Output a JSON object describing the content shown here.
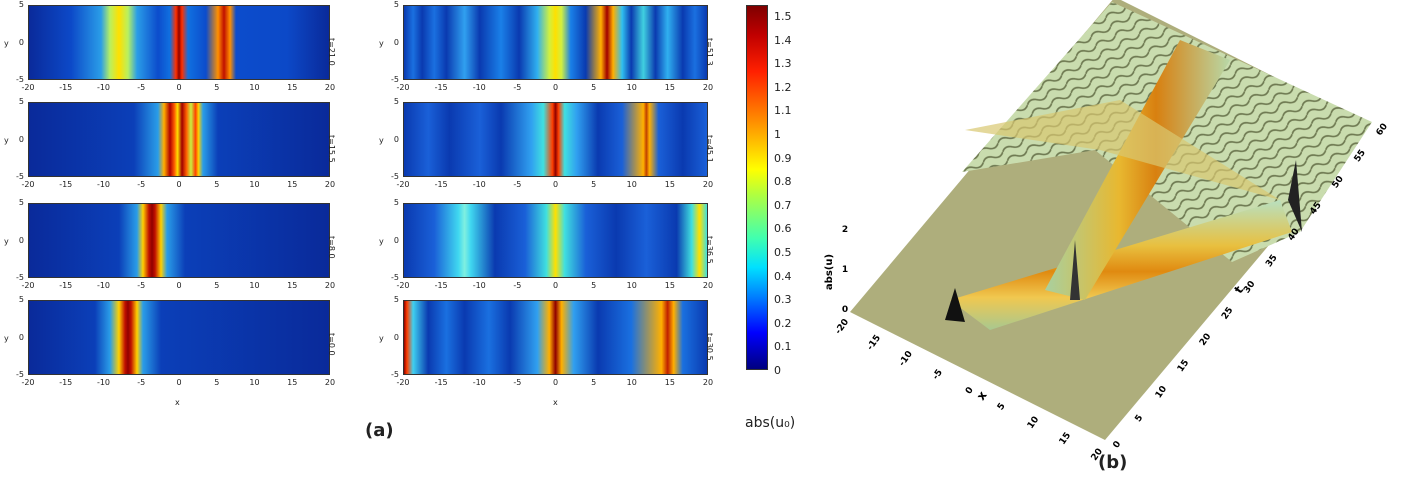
{
  "panel_a": {
    "label": "(a)",
    "x_label": "x",
    "y_label": "y",
    "plots": [
      {
        "time": "t=21.0",
        "x_ticks": [
          "-20",
          "-15",
          "-10",
          "-5",
          "0",
          "5",
          "10",
          "15",
          "20"
        ],
        "y_ticks": [
          "5",
          "0",
          "-5"
        ]
      },
      {
        "time": "t=15.5",
        "x_ticks": [
          "-20",
          "-15",
          "-10",
          "-5",
          "0",
          "5",
          "10",
          "15",
          "20"
        ],
        "y_ticks": [
          "5",
          "0",
          "-5"
        ]
      },
      {
        "time": "t=8.0",
        "x_ticks": [
          "-20",
          "-15",
          "-10",
          "-5",
          "0",
          "5",
          "10",
          "15",
          "20"
        ],
        "y_ticks": [
          "5",
          "0",
          "-5"
        ]
      },
      {
        "time": "t=0.0",
        "x_ticks": [
          "-20",
          "-15",
          "-10",
          "-5",
          "0",
          "5",
          "10",
          "15",
          "20"
        ],
        "y_ticks": [
          "5",
          "0",
          "-5"
        ]
      },
      {
        "time": "t=51.3",
        "x_ticks": [
          "-20",
          "-15",
          "-10",
          "-5",
          "0",
          "5",
          "10",
          "15",
          "20"
        ],
        "y_ticks": [
          "5",
          "0",
          "-5"
        ]
      },
      {
        "time": "t=45.1",
        "x_ticks": [
          "-20",
          "-15",
          "-10",
          "-5",
          "0",
          "5",
          "10",
          "15",
          "20"
        ],
        "y_ticks": [
          "5",
          "0",
          "-5"
        ]
      },
      {
        "time": "t=36.5",
        "x_ticks": [
          "-20",
          "-15",
          "-10",
          "-5",
          "0",
          "5",
          "10",
          "15",
          "20"
        ],
        "y_ticks": [
          "5",
          "0",
          "-5"
        ]
      },
      {
        "time": "t=30.5",
        "x_ticks": [
          "-20",
          "-15",
          "-10",
          "-5",
          "0",
          "5",
          "10",
          "15",
          "20"
        ],
        "y_ticks": [
          "5",
          "0",
          "-5"
        ]
      }
    ],
    "colorbar": {
      "label": "abs(u₀)",
      "ticks": [
        "0",
        "0.1",
        "0.2",
        "0.3",
        "0.4",
        "0.5",
        "0.6",
        "0.7",
        "0.8",
        "0.9",
        "1",
        "1.1",
        "1.2",
        "1.3",
        "1.4",
        "1.5"
      ]
    }
  },
  "panel_b": {
    "label": "(b)",
    "x_label": "x",
    "t_label": "t",
    "z_label": "abs(u)",
    "x_ticks": [
      "-20",
      "-15",
      "-10",
      "-5",
      "0",
      "5",
      "10",
      "15",
      "20"
    ],
    "t_ticks": [
      "0",
      "5",
      "10",
      "15",
      "20",
      "25",
      "30",
      "35",
      "40",
      "45",
      "50",
      "55",
      "60"
    ],
    "z_ticks": [
      "0",
      "1",
      "2"
    ]
  }
}
